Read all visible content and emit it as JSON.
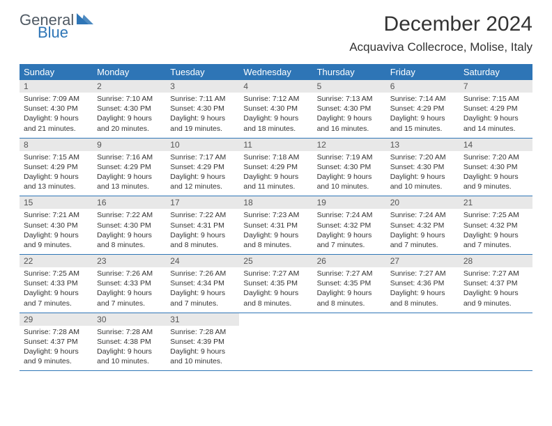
{
  "logo": {
    "top": "General",
    "bottom": "Blue"
  },
  "colors": {
    "accent": "#2e75b6",
    "day_num_bg": "#e8e8e8",
    "text": "#333333",
    "header_text": "#ffffff",
    "logo_gray": "#505a64"
  },
  "title": "December 2024",
  "location": "Acquaviva Collecroce, Molise, Italy",
  "day_headers": [
    "Sunday",
    "Monday",
    "Tuesday",
    "Wednesday",
    "Thursday",
    "Friday",
    "Saturday"
  ],
  "weeks": [
    [
      {
        "n": "1",
        "sunrise": "Sunrise: 7:09 AM",
        "sunset": "Sunset: 4:30 PM",
        "d1": "Daylight: 9 hours",
        "d2": "and 21 minutes."
      },
      {
        "n": "2",
        "sunrise": "Sunrise: 7:10 AM",
        "sunset": "Sunset: 4:30 PM",
        "d1": "Daylight: 9 hours",
        "d2": "and 20 minutes."
      },
      {
        "n": "3",
        "sunrise": "Sunrise: 7:11 AM",
        "sunset": "Sunset: 4:30 PM",
        "d1": "Daylight: 9 hours",
        "d2": "and 19 minutes."
      },
      {
        "n": "4",
        "sunrise": "Sunrise: 7:12 AM",
        "sunset": "Sunset: 4:30 PM",
        "d1": "Daylight: 9 hours",
        "d2": "and 18 minutes."
      },
      {
        "n": "5",
        "sunrise": "Sunrise: 7:13 AM",
        "sunset": "Sunset: 4:30 PM",
        "d1": "Daylight: 9 hours",
        "d2": "and 16 minutes."
      },
      {
        "n": "6",
        "sunrise": "Sunrise: 7:14 AM",
        "sunset": "Sunset: 4:29 PM",
        "d1": "Daylight: 9 hours",
        "d2": "and 15 minutes."
      },
      {
        "n": "7",
        "sunrise": "Sunrise: 7:15 AM",
        "sunset": "Sunset: 4:29 PM",
        "d1": "Daylight: 9 hours",
        "d2": "and 14 minutes."
      }
    ],
    [
      {
        "n": "8",
        "sunrise": "Sunrise: 7:15 AM",
        "sunset": "Sunset: 4:29 PM",
        "d1": "Daylight: 9 hours",
        "d2": "and 13 minutes."
      },
      {
        "n": "9",
        "sunrise": "Sunrise: 7:16 AM",
        "sunset": "Sunset: 4:29 PM",
        "d1": "Daylight: 9 hours",
        "d2": "and 13 minutes."
      },
      {
        "n": "10",
        "sunrise": "Sunrise: 7:17 AM",
        "sunset": "Sunset: 4:29 PM",
        "d1": "Daylight: 9 hours",
        "d2": "and 12 minutes."
      },
      {
        "n": "11",
        "sunrise": "Sunrise: 7:18 AM",
        "sunset": "Sunset: 4:29 PM",
        "d1": "Daylight: 9 hours",
        "d2": "and 11 minutes."
      },
      {
        "n": "12",
        "sunrise": "Sunrise: 7:19 AM",
        "sunset": "Sunset: 4:30 PM",
        "d1": "Daylight: 9 hours",
        "d2": "and 10 minutes."
      },
      {
        "n": "13",
        "sunrise": "Sunrise: 7:20 AM",
        "sunset": "Sunset: 4:30 PM",
        "d1": "Daylight: 9 hours",
        "d2": "and 10 minutes."
      },
      {
        "n": "14",
        "sunrise": "Sunrise: 7:20 AM",
        "sunset": "Sunset: 4:30 PM",
        "d1": "Daylight: 9 hours",
        "d2": "and 9 minutes."
      }
    ],
    [
      {
        "n": "15",
        "sunrise": "Sunrise: 7:21 AM",
        "sunset": "Sunset: 4:30 PM",
        "d1": "Daylight: 9 hours",
        "d2": "and 9 minutes."
      },
      {
        "n": "16",
        "sunrise": "Sunrise: 7:22 AM",
        "sunset": "Sunset: 4:30 PM",
        "d1": "Daylight: 9 hours",
        "d2": "and 8 minutes."
      },
      {
        "n": "17",
        "sunrise": "Sunrise: 7:22 AM",
        "sunset": "Sunset: 4:31 PM",
        "d1": "Daylight: 9 hours",
        "d2": "and 8 minutes."
      },
      {
        "n": "18",
        "sunrise": "Sunrise: 7:23 AM",
        "sunset": "Sunset: 4:31 PM",
        "d1": "Daylight: 9 hours",
        "d2": "and 8 minutes."
      },
      {
        "n": "19",
        "sunrise": "Sunrise: 7:24 AM",
        "sunset": "Sunset: 4:32 PM",
        "d1": "Daylight: 9 hours",
        "d2": "and 7 minutes."
      },
      {
        "n": "20",
        "sunrise": "Sunrise: 7:24 AM",
        "sunset": "Sunset: 4:32 PM",
        "d1": "Daylight: 9 hours",
        "d2": "and 7 minutes."
      },
      {
        "n": "21",
        "sunrise": "Sunrise: 7:25 AM",
        "sunset": "Sunset: 4:32 PM",
        "d1": "Daylight: 9 hours",
        "d2": "and 7 minutes."
      }
    ],
    [
      {
        "n": "22",
        "sunrise": "Sunrise: 7:25 AM",
        "sunset": "Sunset: 4:33 PM",
        "d1": "Daylight: 9 hours",
        "d2": "and 7 minutes."
      },
      {
        "n": "23",
        "sunrise": "Sunrise: 7:26 AM",
        "sunset": "Sunset: 4:33 PM",
        "d1": "Daylight: 9 hours",
        "d2": "and 7 minutes."
      },
      {
        "n": "24",
        "sunrise": "Sunrise: 7:26 AM",
        "sunset": "Sunset: 4:34 PM",
        "d1": "Daylight: 9 hours",
        "d2": "and 7 minutes."
      },
      {
        "n": "25",
        "sunrise": "Sunrise: 7:27 AM",
        "sunset": "Sunset: 4:35 PM",
        "d1": "Daylight: 9 hours",
        "d2": "and 8 minutes."
      },
      {
        "n": "26",
        "sunrise": "Sunrise: 7:27 AM",
        "sunset": "Sunset: 4:35 PM",
        "d1": "Daylight: 9 hours",
        "d2": "and 8 minutes."
      },
      {
        "n": "27",
        "sunrise": "Sunrise: 7:27 AM",
        "sunset": "Sunset: 4:36 PM",
        "d1": "Daylight: 9 hours",
        "d2": "and 8 minutes."
      },
      {
        "n": "28",
        "sunrise": "Sunrise: 7:27 AM",
        "sunset": "Sunset: 4:37 PM",
        "d1": "Daylight: 9 hours",
        "d2": "and 9 minutes."
      }
    ],
    [
      {
        "n": "29",
        "sunrise": "Sunrise: 7:28 AM",
        "sunset": "Sunset: 4:37 PM",
        "d1": "Daylight: 9 hours",
        "d2": "and 9 minutes."
      },
      {
        "n": "30",
        "sunrise": "Sunrise: 7:28 AM",
        "sunset": "Sunset: 4:38 PM",
        "d1": "Daylight: 9 hours",
        "d2": "and 10 minutes."
      },
      {
        "n": "31",
        "sunrise": "Sunrise: 7:28 AM",
        "sunset": "Sunset: 4:39 PM",
        "d1": "Daylight: 9 hours",
        "d2": "and 10 minutes."
      },
      null,
      null,
      null,
      null
    ]
  ]
}
